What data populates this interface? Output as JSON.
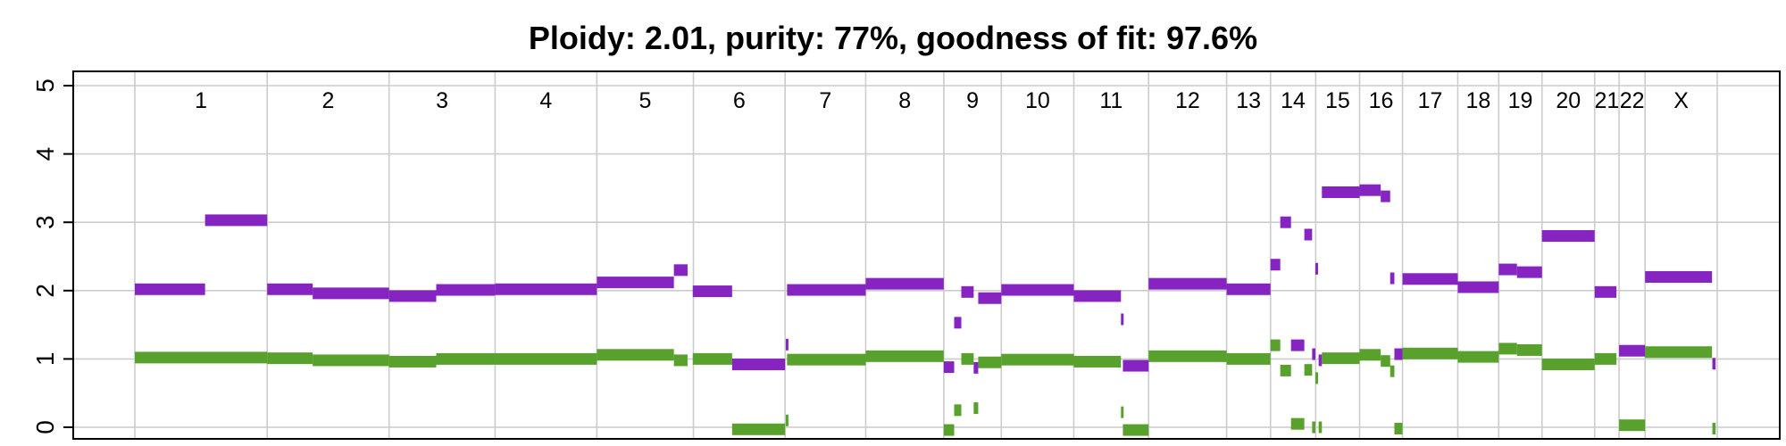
{
  "chart_data": {
    "type": "segments",
    "title": "Ploidy: 2.01, purity: 77%, goodness of fit: 97.6%",
    "xlabel": "",
    "ylabel": "",
    "ylim": [
      0,
      5
    ],
    "y_ticks": [
      "0",
      "1",
      "2",
      "3",
      "4",
      "5"
    ],
    "grid": true,
    "colors": {
      "total": "#8624c2",
      "minor": "#58a12c",
      "grid": "#cccccc",
      "frame": "#000000"
    },
    "chromosomes": [
      {
        "name": "1",
        "start": 0.0,
        "end": 20.35
      },
      {
        "name": "2",
        "start": 20.35,
        "end": 39.1
      },
      {
        "name": "3",
        "start": 39.1,
        "end": 55.4
      },
      {
        "name": "4",
        "start": 55.4,
        "end": 71.05
      },
      {
        "name": "5",
        "start": 71.05,
        "end": 85.9
      },
      {
        "name": "6",
        "start": 85.9,
        "end": 100.0
      },
      {
        "name": "7",
        "start": 100.0,
        "end": 112.4
      },
      {
        "name": "8",
        "start": 112.4,
        "end": 124.4
      },
      {
        "name": "9",
        "start": 124.4,
        "end": 133.25
      },
      {
        "name": "10",
        "start": 133.25,
        "end": 144.4
      },
      {
        "name": "11",
        "start": 144.4,
        "end": 155.9
      },
      {
        "name": "12",
        "start": 155.9,
        "end": 167.9
      },
      {
        "name": "13",
        "start": 167.9,
        "end": 174.65
      },
      {
        "name": "14",
        "start": 174.65,
        "end": 181.6
      },
      {
        "name": "15",
        "start": 181.6,
        "end": 188.35
      },
      {
        "name": "16",
        "start": 188.35,
        "end": 194.95
      },
      {
        "name": "17",
        "start": 194.95,
        "end": 203.45
      },
      {
        "name": "18",
        "start": 203.45,
        "end": 209.75
      },
      {
        "name": "19",
        "start": 209.75,
        "end": 216.4
      },
      {
        "name": "20",
        "start": 216.4,
        "end": 224.5
      },
      {
        "name": "21",
        "start": 224.5,
        "end": 228.25
      },
      {
        "name": "22",
        "start": 228.25,
        "end": 232.25
      },
      {
        "name": "X",
        "start": 232.25,
        "end": 243.35
      }
    ],
    "series": [
      {
        "key": "total",
        "segments": [
          [
            0.0,
            10.8,
            2.02
          ],
          [
            10.8,
            20.35,
            3.03
          ],
          [
            20.35,
            27.35,
            2.02
          ],
          [
            27.35,
            39.1,
            1.96
          ],
          [
            39.1,
            46.35,
            1.92
          ],
          [
            46.35,
            55.4,
            2.01
          ],
          [
            55.4,
            71.05,
            2.02
          ],
          [
            71.05,
            82.9,
            2.12
          ],
          [
            82.9,
            85.0,
            2.3
          ],
          [
            85.8,
            91.85,
            1.99
          ],
          [
            91.85,
            100.0,
            0.92
          ],
          [
            100.1,
            100.3,
            1.21
          ],
          [
            100.3,
            112.4,
            2.01
          ],
          [
            112.4,
            124.4,
            2.1
          ],
          [
            124.4,
            126.0,
            0.88
          ],
          [
            126.0,
            127.1,
            1.53
          ],
          [
            127.1,
            129.0,
            1.98
          ],
          [
            129.0,
            129.7,
            0.87
          ],
          [
            129.7,
            133.25,
            1.89
          ],
          [
            133.25,
            144.4,
            2.01
          ],
          [
            144.4,
            151.65,
            1.92
          ],
          [
            151.65,
            151.95,
            1.58
          ],
          [
            151.95,
            155.9,
            0.9
          ],
          [
            155.9,
            167.9,
            2.1
          ],
          [
            167.9,
            174.65,
            2.02
          ],
          [
            174.65,
            176.15,
            2.38
          ],
          [
            176.15,
            177.8,
            3.0
          ],
          [
            177.8,
            179.85,
            1.2
          ],
          [
            179.85,
            181.05,
            2.82
          ],
          [
            181.05,
            181.55,
            1.07
          ],
          [
            181.55,
            181.95,
            2.32
          ],
          [
            182.05,
            182.55,
            0.98
          ],
          [
            182.55,
            188.35,
            3.44
          ],
          [
            188.35,
            191.6,
            3.47
          ],
          [
            191.6,
            193.05,
            3.38
          ],
          [
            193.05,
            193.7,
            2.18
          ],
          [
            193.7,
            194.95,
            1.07
          ],
          [
            194.95,
            203.45,
            2.17
          ],
          [
            203.45,
            209.75,
            2.05
          ],
          [
            209.75,
            212.55,
            2.31
          ],
          [
            212.55,
            216.4,
            2.27
          ],
          [
            216.4,
            224.5,
            2.8
          ],
          [
            224.5,
            227.85,
            1.98
          ],
          [
            228.25,
            232.25,
            1.12
          ],
          [
            232.25,
            242.55,
            2.2
          ],
          [
            242.6,
            243.1,
            0.93
          ]
        ]
      },
      {
        "key": "minor",
        "segments": [
          [
            0.0,
            20.35,
            1.02
          ],
          [
            20.35,
            27.35,
            1.01
          ],
          [
            27.35,
            39.1,
            0.98
          ],
          [
            39.1,
            46.35,
            0.96
          ],
          [
            46.35,
            55.4,
            1.0
          ],
          [
            55.4,
            71.05,
            1.0
          ],
          [
            71.05,
            82.9,
            1.06
          ],
          [
            82.9,
            85.0,
            0.98
          ],
          [
            85.8,
            91.85,
            1.0
          ],
          [
            91.85,
            100.0,
            -0.03
          ],
          [
            100.1,
            100.3,
            0.1
          ],
          [
            100.3,
            112.4,
            0.99
          ],
          [
            112.4,
            124.4,
            1.04
          ],
          [
            124.4,
            126.0,
            -0.04
          ],
          [
            126.0,
            127.1,
            0.25
          ],
          [
            127.1,
            129.0,
            1.0
          ],
          [
            129.0,
            129.7,
            0.28
          ],
          [
            129.7,
            133.25,
            0.95
          ],
          [
            133.25,
            144.4,
            0.99
          ],
          [
            144.4,
            151.65,
            0.96
          ],
          [
            151.65,
            151.95,
            0.22
          ],
          [
            151.95,
            155.9,
            -0.04
          ],
          [
            155.9,
            167.9,
            1.04
          ],
          [
            167.9,
            174.65,
            1.0
          ],
          [
            174.65,
            176.15,
            1.2
          ],
          [
            176.15,
            177.8,
            0.83
          ],
          [
            177.8,
            179.85,
            0.05
          ],
          [
            179.85,
            181.05,
            0.84
          ],
          [
            181.05,
            181.55,
            0.0
          ],
          [
            181.55,
            181.95,
            0.72
          ],
          [
            182.05,
            182.55,
            0.0
          ],
          [
            182.55,
            188.35,
            1.01
          ],
          [
            188.35,
            191.6,
            1.06
          ],
          [
            191.6,
            193.05,
            0.97
          ],
          [
            193.05,
            193.7,
            0.82
          ],
          [
            193.7,
            194.95,
            -0.02
          ],
          [
            194.95,
            203.45,
            1.08
          ],
          [
            203.45,
            209.75,
            1.03
          ],
          [
            209.75,
            212.55,
            1.15
          ],
          [
            212.55,
            216.4,
            1.13
          ],
          [
            216.4,
            224.5,
            0.92
          ],
          [
            224.5,
            227.85,
            1.0
          ],
          [
            228.25,
            232.25,
            0.03
          ],
          [
            232.25,
            242.55,
            1.1
          ],
          [
            242.6,
            243.1,
            -0.02
          ]
        ]
      }
    ]
  }
}
